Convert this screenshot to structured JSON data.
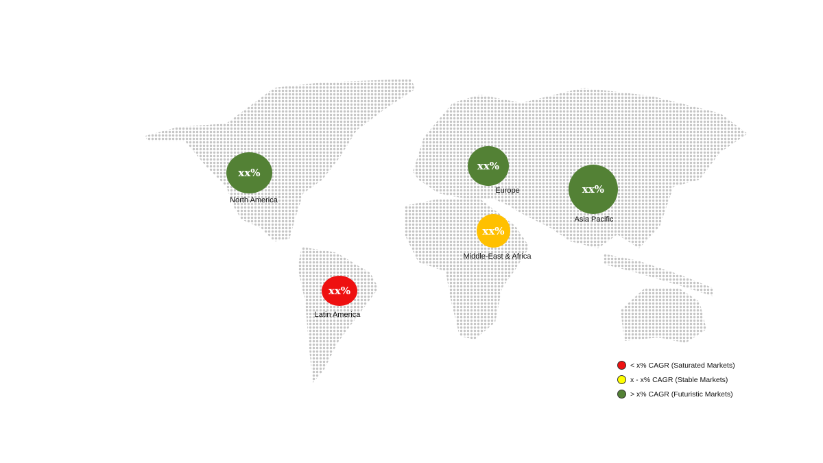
{
  "colors": {
    "saturated": "#ee1111",
    "stable": "#ffc000",
    "futuristic": "#538135",
    "legend_stable": "#ffff00",
    "dots": "#c4c4c4"
  },
  "regions": [
    {
      "name": "North America",
      "value": "xx%",
      "category": "futuristic"
    },
    {
      "name": "Europe",
      "value": "xx%",
      "category": "futuristic"
    },
    {
      "name": "Asia Pacific",
      "value": "xx%",
      "category": "futuristic"
    },
    {
      "name": "Middle-East & Africa",
      "value": "xx%",
      "category": "stable"
    },
    {
      "name": "Latin America",
      "value": "xx%",
      "category": "saturated"
    }
  ],
  "legend": [
    {
      "label": "< x% CAGR (Saturated Markets)",
      "color": "#ee1111"
    },
    {
      "label": "x - x% CAGR (Stable Markets)",
      "color": "#ffff00"
    },
    {
      "label": "> x% CAGR (Futuristic Markets)",
      "color": "#538135"
    }
  ]
}
